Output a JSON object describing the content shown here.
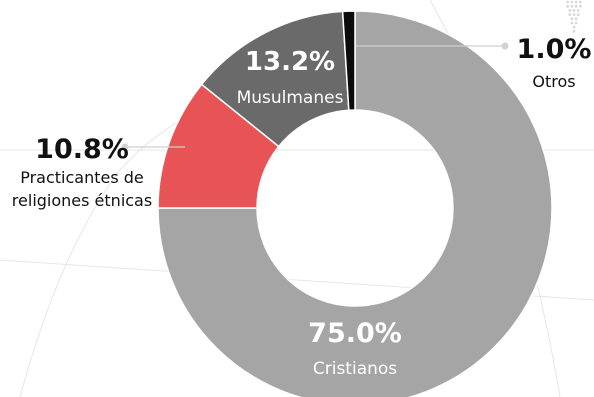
{
  "chart_data": {
    "type": "pie",
    "variant": "donut",
    "title": "",
    "legend": "none",
    "slices": [
      {
        "label": "Cristianos",
        "value": 75.0,
        "display": "75.0%",
        "color": "#a6a5a5"
      },
      {
        "label": "Practicantes de religiones étnicas",
        "label_lines": [
          "Practicantes de",
          "religiones étnicas"
        ],
        "value": 10.8,
        "display": "10.8%",
        "color": "#e85456"
      },
      {
        "label": "Musulmanes",
        "value": 13.2,
        "display": "13.2%",
        "color": "#6b6a6a"
      },
      {
        "label": "Otros",
        "value": 1.0,
        "display": "1.0%",
        "color": "#0b0b0b"
      }
    ]
  }
}
